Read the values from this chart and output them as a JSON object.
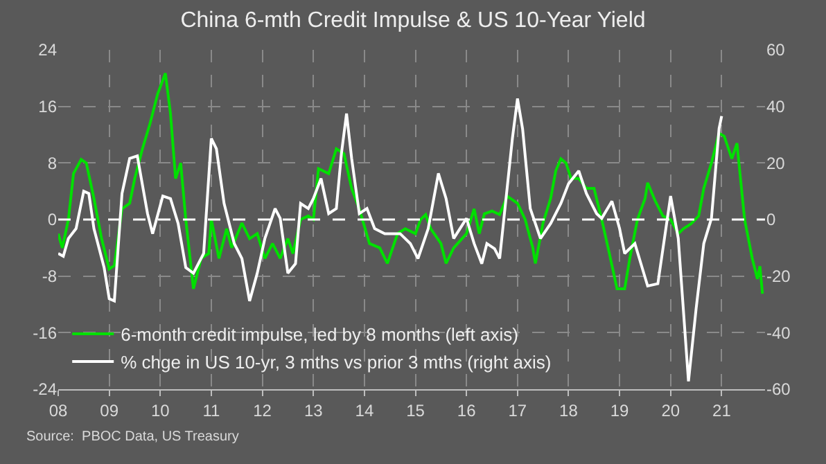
{
  "chart_data": {
    "type": "line",
    "title": "China 6-mth Credit Impulse & US 10-Year Yield",
    "xlim": [
      2008,
      2021.85
    ],
    "xticks": [
      {
        "value": 2008,
        "label": "08"
      },
      {
        "value": 2009,
        "label": "09"
      },
      {
        "value": 2010,
        "label": "10"
      },
      {
        "value": 2011,
        "label": "11"
      },
      {
        "value": 2012,
        "label": "12"
      },
      {
        "value": 2013,
        "label": "13"
      },
      {
        "value": 2014,
        "label": "14"
      },
      {
        "value": 2015,
        "label": "15"
      },
      {
        "value": 2016,
        "label": "16"
      },
      {
        "value": 2017,
        "label": "17"
      },
      {
        "value": 2018,
        "label": "18"
      },
      {
        "value": 2019,
        "label": "19"
      },
      {
        "value": 2020,
        "label": "20"
      },
      {
        "value": 2021,
        "label": "21"
      }
    ],
    "ylim": [
      -24,
      24
    ],
    "yticks": [
      -24,
      -16,
      -8,
      0,
      8,
      16,
      24
    ],
    "y2lim": [
      -60,
      60
    ],
    "y2ticks": [
      -60,
      -40,
      -20,
      0,
      20,
      40,
      60
    ],
    "grid": true,
    "legend": "bottom left",
    "marker": "none",
    "line_style": "solid",
    "ref_lines": [
      {
        "axis": "y",
        "value": 0,
        "color": "#ffffff",
        "line_style": "dashed"
      }
    ],
    "annotations": [
      "Source:  PBOC Data, US Treasury"
    ],
    "series": [
      {
        "name": "6-month credit impulse, led by 8 months (left axis)",
        "color": "#00e000",
        "x": [
          2008.0,
          2008.08,
          2008.2,
          2008.3,
          2008.45,
          2008.55,
          2008.7,
          2008.85,
          2009.0,
          2009.1,
          2009.25,
          2009.4,
          2009.5,
          2009.65,
          2009.8,
          2009.95,
          2010.1,
          2010.2,
          2010.3,
          2010.4,
          2010.5,
          2010.65,
          2010.8,
          2010.95,
          2011.0,
          2011.15,
          2011.3,
          2011.4,
          2011.6,
          2011.75,
          2011.9,
          2012.05,
          2012.2,
          2012.35,
          2012.5,
          2012.6,
          2012.75,
          2012.9,
          2013.0,
          2013.1,
          2013.3,
          2013.45,
          2013.6,
          2013.75,
          2013.9,
          2014.1,
          2014.3,
          2014.45,
          2014.65,
          2014.8,
          2015.0,
          2015.1,
          2015.2,
          2015.3,
          2015.5,
          2015.6,
          2015.75,
          2016.0,
          2016.15,
          2016.25,
          2016.35,
          2016.5,
          2016.65,
          2016.8,
          2017.0,
          2017.15,
          2017.3,
          2017.35,
          2017.5,
          2017.65,
          2017.75,
          2017.85,
          2017.95,
          2018.05,
          2018.2,
          2018.35,
          2018.5,
          2018.65,
          2018.8,
          2018.95,
          2019.1,
          2019.2,
          2019.35,
          2019.5,
          2019.55,
          2019.7,
          2019.85,
          2020.0,
          2020.15,
          2020.25,
          2020.4,
          2020.55,
          2020.65,
          2020.8,
          2020.95,
          2021.05,
          2021.2,
          2021.3,
          2021.45,
          2021.6,
          2021.7,
          2021.75,
          2021.8
        ],
        "values": [
          -2,
          -4,
          0,
          6.5,
          8.5,
          8,
          3,
          -2.7,
          -7,
          -6.5,
          1.5,
          2.3,
          5.8,
          10,
          13.6,
          17.8,
          20.7,
          15,
          5.8,
          8,
          0,
          -9.8,
          -5.5,
          -4.8,
          0,
          -5.5,
          -1.3,
          -4,
          -0.5,
          -2.7,
          -2,
          -5.5,
          -3.4,
          -5.5,
          -2.7,
          -4.8,
          0,
          0.5,
          0,
          7.2,
          6.5,
          10,
          9.3,
          4.4,
          1.5,
          -3.4,
          -4,
          -6.2,
          -2,
          -1.3,
          -2,
          0,
          0.7,
          -1.3,
          -3.4,
          -6.2,
          -4,
          -2,
          1.5,
          -2,
          0.8,
          1.2,
          0.7,
          3.3,
          2.3,
          0,
          -4,
          -6.2,
          -0.5,
          3,
          6.9,
          8.6,
          8,
          5.8,
          5.8,
          4.4,
          4.4,
          0,
          -4.8,
          -9.8,
          -9.8,
          -5.5,
          0,
          3,
          5.2,
          2.6,
          0.5,
          0,
          -2,
          -1.3,
          -0.6,
          0.5,
          4.4,
          8,
          12.2,
          11.8,
          8.6,
          10.8,
          0,
          -5.5,
          -8.4,
          -6.6,
          -10.5
        ]
      },
      {
        "name": "% chge in US 10-yr, 3 mths vs prior 3 mths (right axis)",
        "color": "#ffffff",
        "axis": "y2",
        "x": [
          2008.0,
          2008.1,
          2008.2,
          2008.35,
          2008.5,
          2008.6,
          2008.7,
          2008.9,
          2009.0,
          2009.1,
          2009.25,
          2009.4,
          2009.55,
          2009.75,
          2009.85,
          2010.05,
          2010.2,
          2010.35,
          2010.5,
          2010.65,
          2010.85,
          2011.0,
          2011.1,
          2011.25,
          2011.45,
          2011.6,
          2011.75,
          2011.9,
          2012.05,
          2012.25,
          2012.35,
          2012.5,
          2012.65,
          2012.75,
          2012.9,
          2013.0,
          2013.15,
          2013.3,
          2013.45,
          2013.55,
          2013.65,
          2013.75,
          2013.9,
          2014.05,
          2014.2,
          2014.4,
          2014.7,
          2014.9,
          2015.05,
          2015.25,
          2015.45,
          2015.6,
          2015.75,
          2016.0,
          2016.15,
          2016.3,
          2016.4,
          2016.55,
          2016.65,
          2016.9,
          2017.0,
          2017.1,
          2017.25,
          2017.45,
          2017.65,
          2017.85,
          2018.0,
          2018.2,
          2018.35,
          2018.55,
          2018.65,
          2018.85,
          2019.0,
          2019.1,
          2019.3,
          2019.55,
          2019.75,
          2020.0,
          2020.15,
          2020.35,
          2020.5,
          2020.65,
          2020.8,
          2020.95,
          2021.0
        ],
        "values": [
          -12,
          -13,
          -6.7,
          -3.2,
          10,
          9.2,
          -3.2,
          -17,
          -28,
          -28.8,
          9.2,
          21.6,
          22.5,
          2.1,
          -5,
          8.3,
          7.4,
          -1.4,
          -17,
          -19,
          -12,
          28.7,
          25,
          5.7,
          -8.5,
          -13.8,
          -28.8,
          -19,
          -6.7,
          3.9,
          0.4,
          -19,
          -15.6,
          5.7,
          3.9,
          7.4,
          14.5,
          2.1,
          3.9,
          23.4,
          37.5,
          21.6,
          2.1,
          3.9,
          -3.2,
          -5,
          -5,
          -8.5,
          -13.8,
          -3.2,
          16.3,
          7.4,
          -6.7,
          0.4,
          -8.5,
          -15.6,
          -8.5,
          -10.3,
          -13.8,
          28.7,
          42.8,
          32,
          3.9,
          -6.7,
          -1.4,
          5.7,
          12.7,
          17.2,
          9.2,
          2.1,
          0.4,
          6.5,
          -3.2,
          -12,
          -8.5,
          -23.5,
          -22.7,
          8.3,
          -6.7,
          -57.2,
          -31.5,
          -8.5,
          0.4,
          32.2,
          36.6
        ]
      }
    ]
  }
}
